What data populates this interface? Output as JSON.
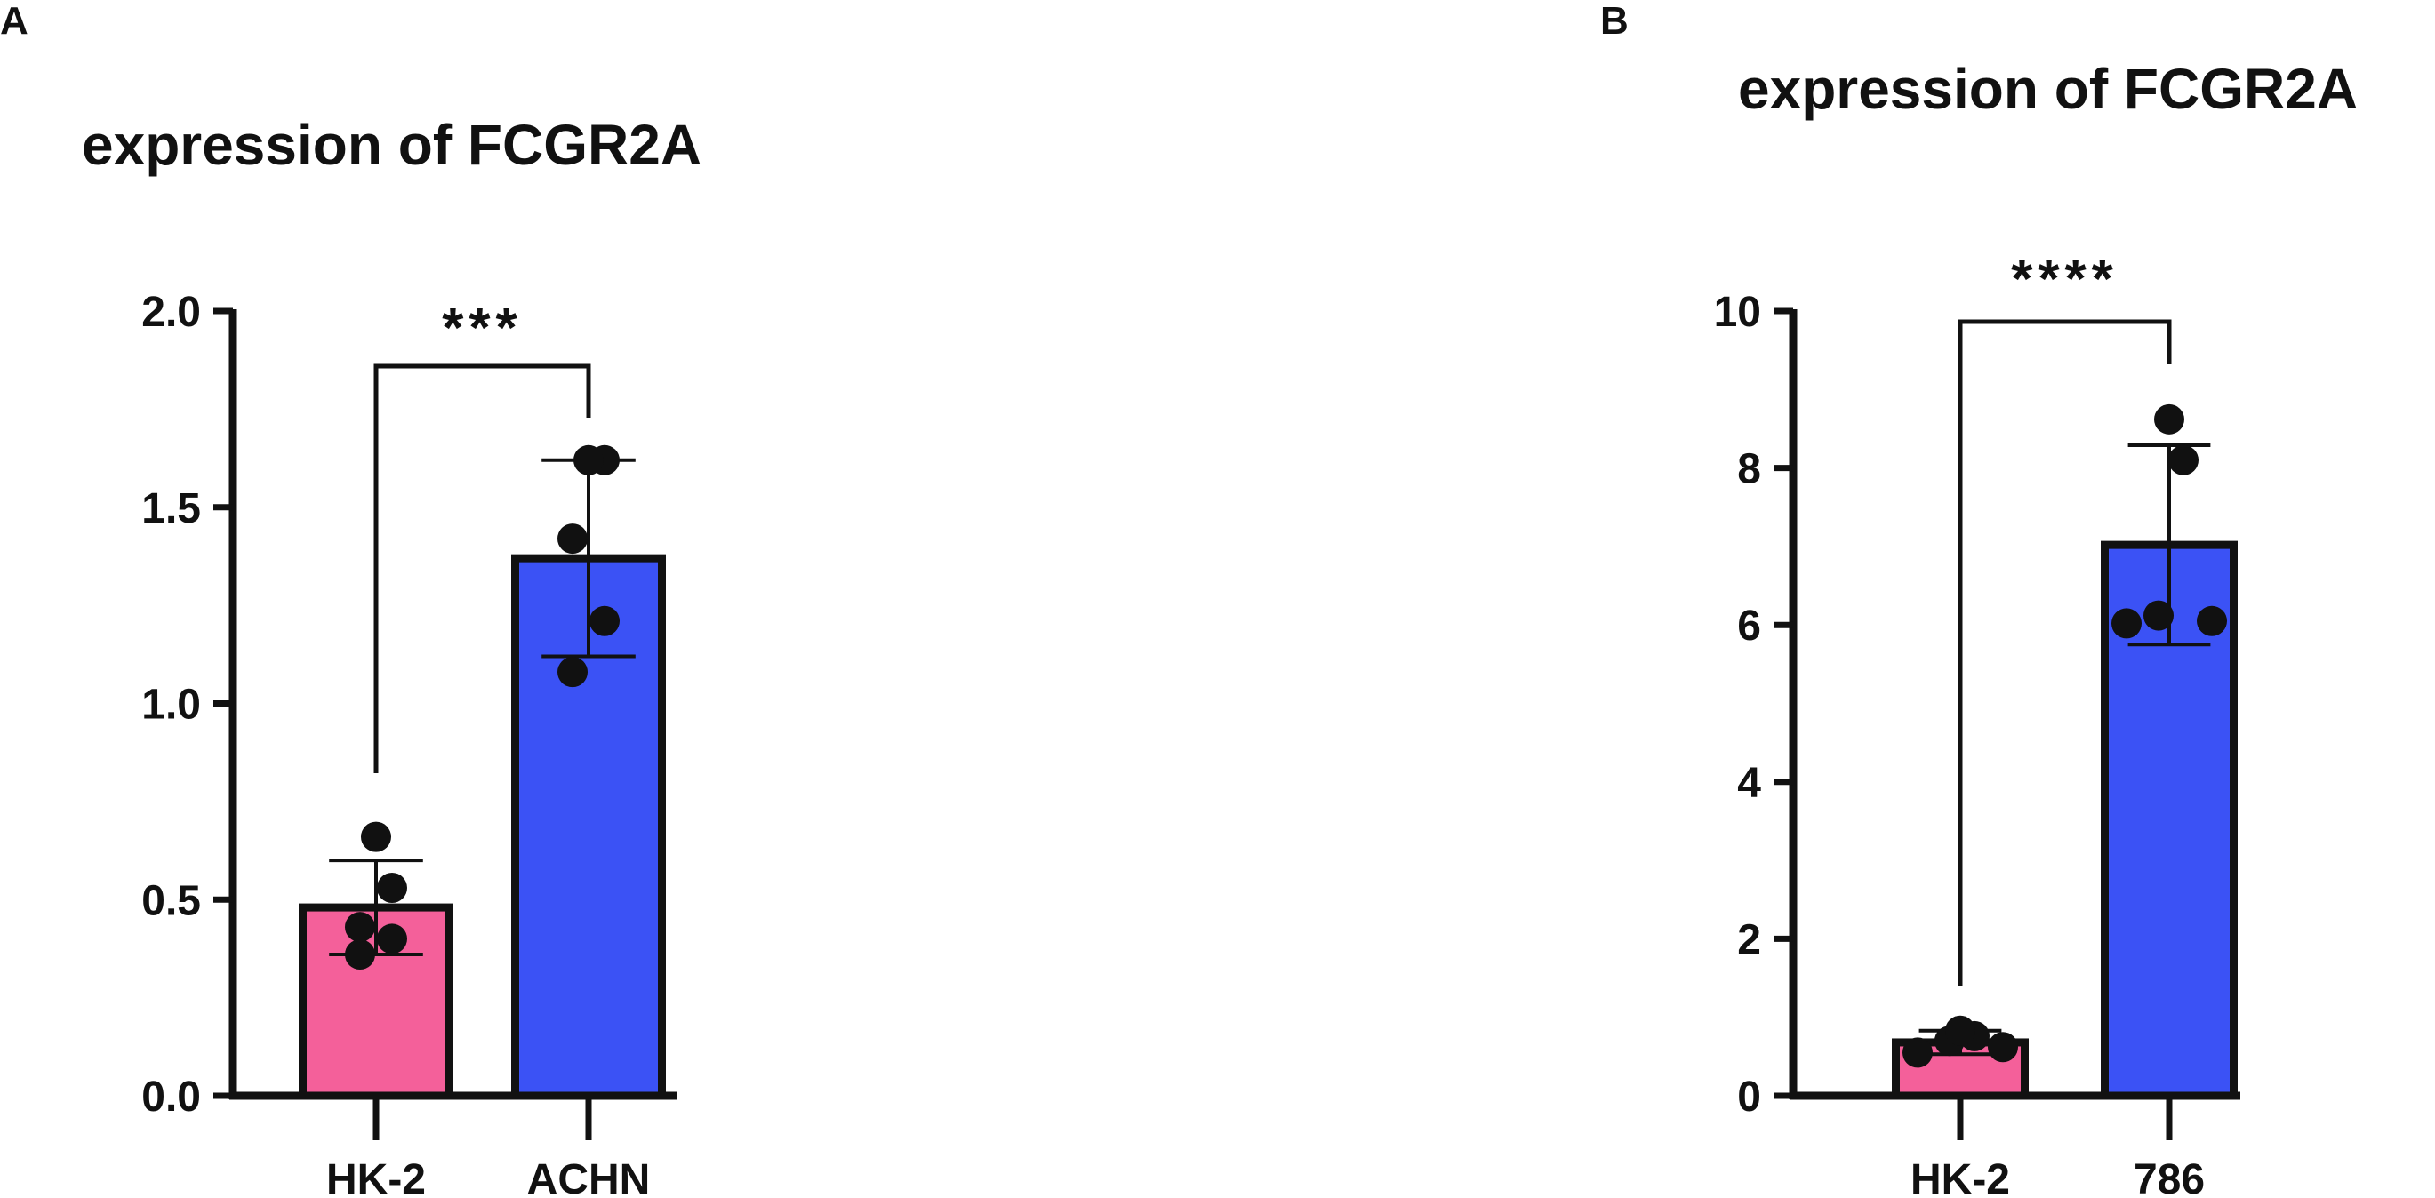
{
  "panels": [
    {
      "letter": "A",
      "title": "expression of FCGR2A"
    },
    {
      "letter": "B",
      "title": "expression of FCGR2A"
    }
  ],
  "colors": {
    "hk2_bar": "#F4609A",
    "cell_bar": "#3B52F5",
    "axis": "#111111",
    "points": "#111111"
  },
  "chart_data": [
    {
      "type": "bar",
      "panel": "A",
      "title": "expression of FCGR2A",
      "xlabel": "",
      "ylabel": "",
      "ylim": [
        0,
        2.0
      ],
      "yticks": [
        0.0,
        0.5,
        1.0,
        1.5,
        2.0
      ],
      "ytick_labels": [
        "0.0",
        "0.5",
        "1.0",
        "1.5",
        "2.0"
      ],
      "categories": [
        "HK-2",
        "ACHN"
      ],
      "values": [
        0.48,
        1.37
      ],
      "error_sd": [
        0.12,
        0.25
      ],
      "points": [
        [
          0.36,
          0.4,
          0.43,
          0.53,
          0.66
        ],
        [
          1.08,
          1.21,
          1.42,
          1.62,
          1.62
        ]
      ],
      "significance": {
        "between": [
          "HK-2",
          "ACHN"
        ],
        "label": "***"
      },
      "grid": false,
      "legend": "none"
    },
    {
      "type": "bar",
      "panel": "B",
      "title": "expression of FCGR2A",
      "xlabel": "",
      "ylabel": "",
      "ylim": [
        0,
        10
      ],
      "yticks": [
        0,
        2,
        4,
        6,
        8,
        10
      ],
      "ytick_labels": [
        "0",
        "2",
        "4",
        "6",
        "8",
        "10"
      ],
      "categories": [
        "HK-2",
        "786"
      ],
      "values": [
        0.68,
        7.02
      ],
      "error_sd": [
        0.15,
        1.27
      ],
      "points": [
        [
          0.55,
          0.62,
          0.7,
          0.76,
          0.83
        ],
        [
          6.02,
          6.05,
          6.12,
          8.1,
          8.62
        ]
      ],
      "significance": {
        "between": [
          "HK-2",
          "786"
        ],
        "label": "****"
      },
      "grid": false,
      "legend": "none"
    }
  ]
}
